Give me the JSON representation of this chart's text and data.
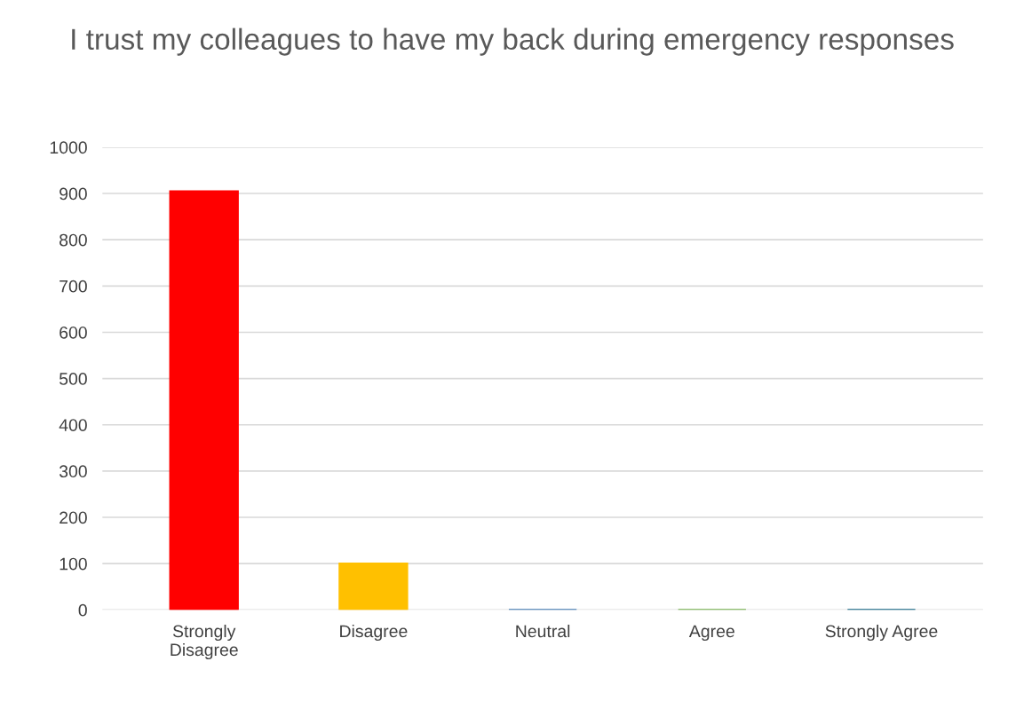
{
  "chart_data": {
    "type": "bar",
    "title": "I trust my colleagues to have my back during emergency responses",
    "categories": [
      "Strongly\nDisagree",
      "Disagree",
      "Neutral",
      "Agree",
      "Strongly Agree"
    ],
    "values": [
      905,
      100,
      0,
      0,
      0
    ],
    "colors": [
      "#ff0000",
      "#ffc000",
      "#3a75b0",
      "#70ad47",
      "#0a5f7f"
    ],
    "ylim": [
      0,
      1000
    ],
    "yticks": [
      0,
      100,
      200,
      300,
      400,
      500,
      600,
      700,
      800,
      900,
      1000
    ],
    "grid": "y"
  }
}
